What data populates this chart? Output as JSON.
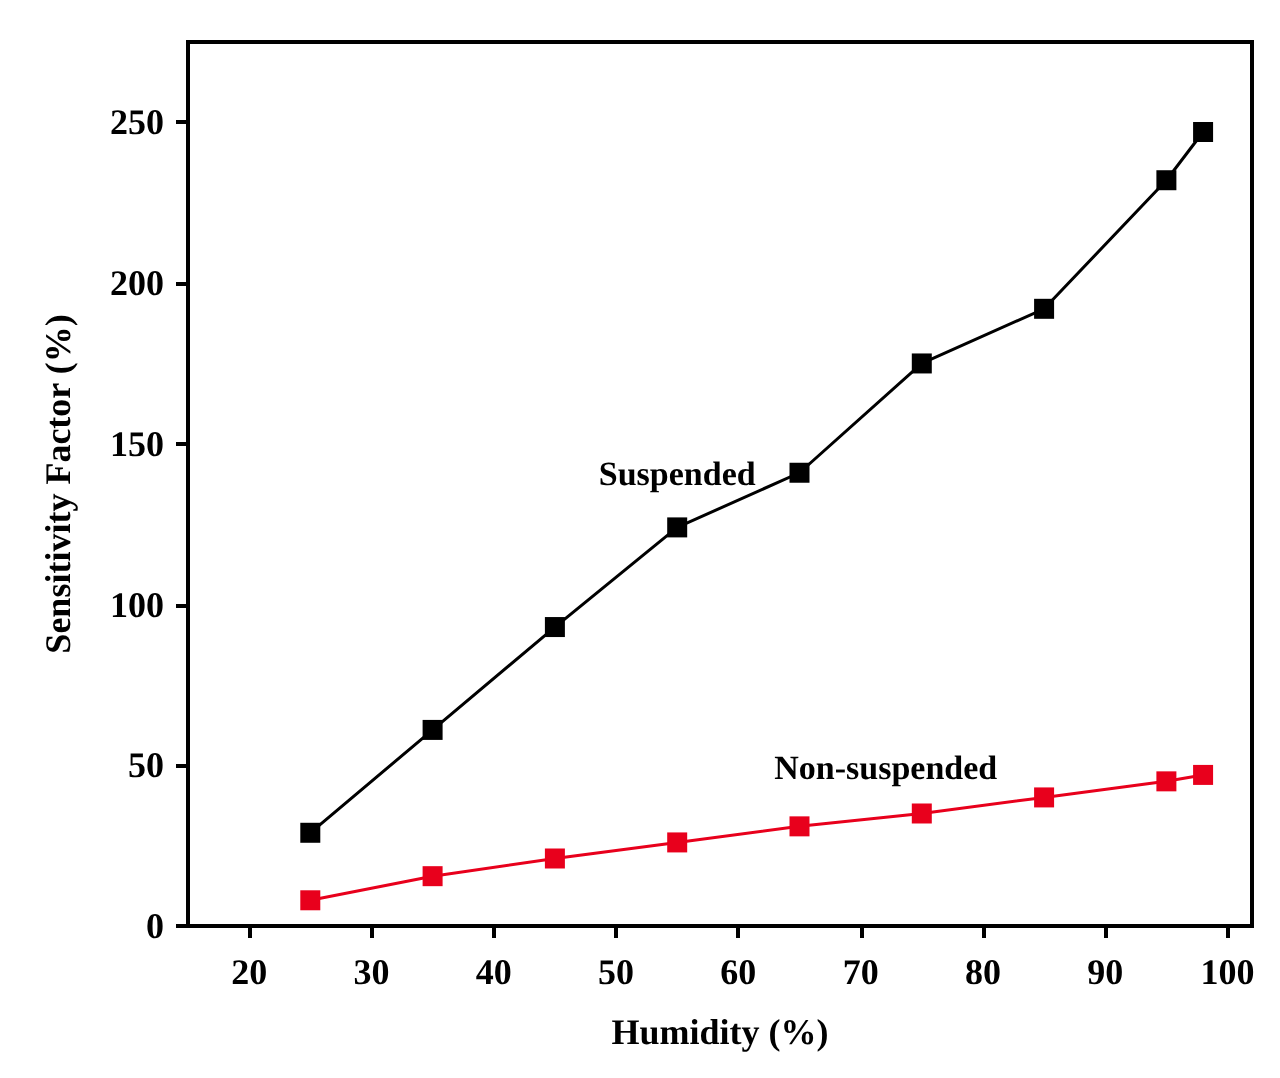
{
  "chart_data": {
    "type": "line",
    "xlabel": "Humidity (%)",
    "ylabel": "Sensitivity Factor (%)",
    "x": [
      25,
      35,
      45,
      55,
      65,
      75,
      85,
      95,
      98
    ],
    "series": [
      {
        "name": "Suspended",
        "color": "#000000",
        "values": [
          29,
          61,
          93,
          124,
          141,
          175,
          192,
          232,
          247
        ]
      },
      {
        "name": "Non-suspended",
        "color": "#e8001c",
        "values": [
          8,
          15.5,
          21,
          26,
          31,
          35,
          40,
          45,
          47
        ]
      }
    ],
    "xlim": [
      15,
      102
    ],
    "xticks": [
      20,
      30,
      40,
      50,
      60,
      70,
      80,
      90,
      100
    ],
    "ylim": [
      0,
      275
    ],
    "yticks": [
      0,
      50,
      100,
      150,
      200,
      250
    ],
    "marker": "square",
    "line_style": "solid",
    "grid": false,
    "legend": false
  }
}
